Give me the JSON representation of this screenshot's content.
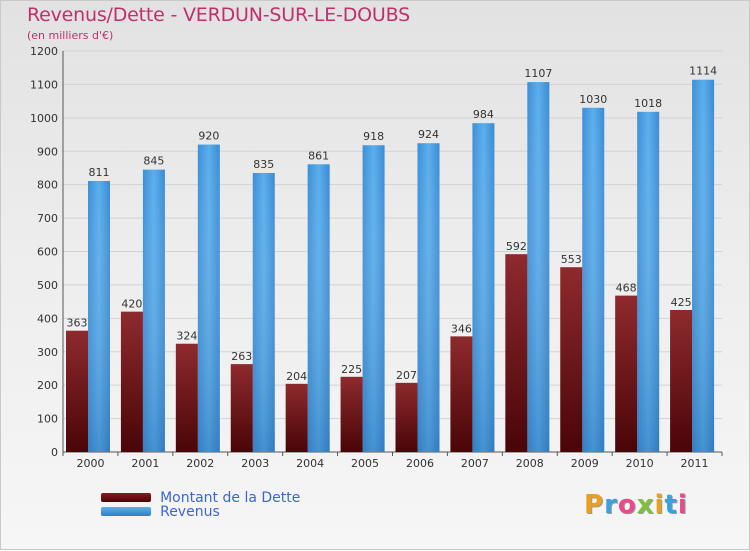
{
  "title": "Revenus/Dette - VERDUN-SUR-LE-DOUBS",
  "subtitle": "(en milliers d'€)",
  "logo": "Proxiti",
  "colors": {
    "debt": "#7a1418",
    "revenue": "#4fa3e6",
    "title": "#c0306a",
    "legend_text": "#3a66d8"
  },
  "chart_data": {
    "type": "bar",
    "categories": [
      "2000",
      "2001",
      "2002",
      "2003",
      "2004",
      "2005",
      "2006",
      "2007",
      "2008",
      "2009",
      "2010",
      "2011"
    ],
    "series": [
      {
        "name": "Montant de la Dette",
        "values": [
          363,
          420,
          324,
          263,
          204,
          225,
          207,
          346,
          592,
          553,
          468,
          425
        ]
      },
      {
        "name": "Revenus",
        "values": [
          811,
          845,
          920,
          835,
          861,
          918,
          924,
          984,
          1107,
          1030,
          1018,
          1114
        ]
      }
    ],
    "ylim": [
      0,
      1200
    ],
    "yticks": [
      0,
      100,
      200,
      300,
      400,
      500,
      600,
      700,
      800,
      900,
      1000,
      1100,
      1200
    ],
    "grid": true,
    "legend_position": "bottom-left"
  }
}
